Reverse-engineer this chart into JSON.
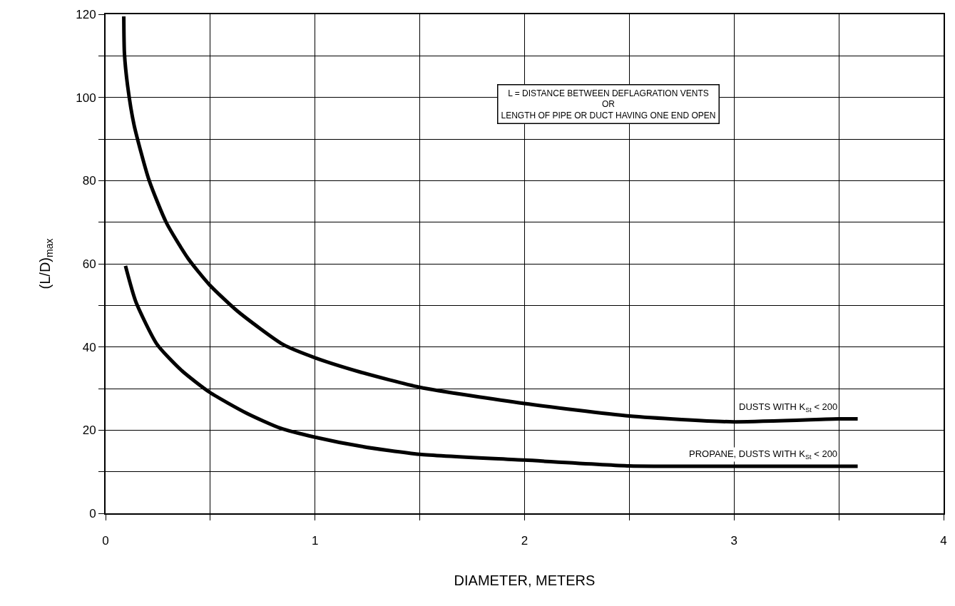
{
  "chart_data": {
    "type": "line",
    "xlabel": "DIAMETER, METERS",
    "ylabel": "(L/D)$_{max}$",
    "xlim": [
      0,
      4
    ],
    "ylim": [
      0,
      120
    ],
    "xticks": [
      0,
      {
        "value": 0.5,
        "label": null
      },
      1,
      {
        "value": 1.5,
        "label": null
      },
      2,
      {
        "value": 2.5,
        "label": null
      },
      3,
      {
        "value": 3.5,
        "label": null
      },
      4
    ],
    "yticks": [
      0,
      {
        "value": 10,
        "label": null
      },
      20,
      {
        "value": 30,
        "label": null
      },
      40,
      {
        "value": 50,
        "label": null
      },
      60,
      {
        "value": 70,
        "label": null
      },
      80,
      {
        "value": 90,
        "label": null
      },
      100,
      {
        "value": 110,
        "label": null
      },
      120
    ],
    "grid": true,
    "marker": "none",
    "line_style": "solid",
    "series": [
      {
        "color": "#000000",
        "x": [
          0.087,
          0.09,
          0.105,
          0.136,
          0.207,
          0.29,
          0.395,
          0.497,
          0.63,
          0.847,
          1.0,
          1.22,
          1.5,
          2.0,
          2.5,
          3.0,
          3.5,
          3.59
        ],
        "values": [
          119.5,
          110.7,
          102.9,
          93.4,
          80.2,
          69.9,
          61.2,
          54.9,
          48.6,
          40.6,
          37.4,
          33.9,
          30.3,
          26.4,
          23.4,
          22.0,
          22.7,
          22.7
        ]
      },
      {
        "color": "#000000",
        "x": [
          0.095,
          0.145,
          0.246,
          0.364,
          0.497,
          0.676,
          0.833,
          1.0,
          1.22,
          1.5,
          2.0,
          2.5,
          3.0,
          3.59
        ],
        "values": [
          59.5,
          50.8,
          40.6,
          34.3,
          29.1,
          24.0,
          20.5,
          18.3,
          16.1,
          14.2,
          12.8,
          11.4,
          11.3,
          11.3
        ]
      }
    ],
    "annotations": [
      "L = DISTANCE BETWEEN DEFLAGRATION VENTS\nOR\nLENGTH OF PIPE OR DUCT HAVING ONE END OPEN",
      {
        "text": "DUSTS WITH K$_{St}$ < 200",
        "x": 3.5,
        "y": 22.7
      },
      {
        "text": "PROPANE, DUSTS WITH K$_{St}$ < 200",
        "x": 3.5,
        "y": 11.3
      }
    ]
  }
}
